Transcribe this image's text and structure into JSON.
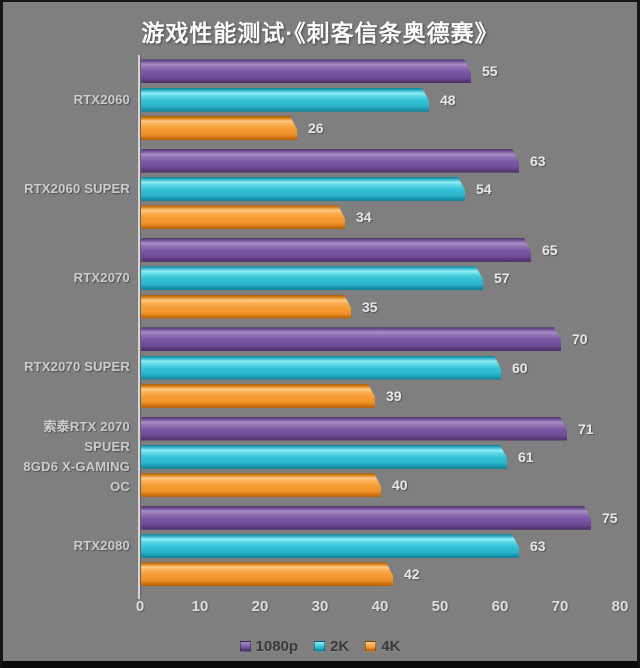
{
  "title": "游戏性能测试·《刺客信条奥德赛》",
  "chart_data": {
    "type": "bar",
    "orientation": "horizontal",
    "title": "游戏性能测试·《刺客信条奥德赛》",
    "categories": [
      "RTX2060",
      "RTX2060 SUPER",
      "RTX2070",
      "RTX2070 SUPER",
      "索泰RTX 2070 SPUER\n8GD6 X-GAMING OC",
      "RTX2080"
    ],
    "series": [
      {
        "name": "1080p",
        "color": "#7c58a4",
        "values": [
          55,
          63,
          65,
          70,
          71,
          75
        ]
      },
      {
        "name": "2K",
        "color": "#35c2d6",
        "values": [
          48,
          54,
          57,
          60,
          61,
          63
        ]
      },
      {
        "name": "4K",
        "color": "#f69d35",
        "values": [
          26,
          34,
          35,
          39,
          40,
          42
        ]
      }
    ],
    "x_ticks": [
      0,
      10,
      20,
      30,
      40,
      50,
      60,
      70,
      80
    ],
    "xlim": [
      0,
      80
    ],
    "data_labels": true,
    "legend_position": "bottom",
    "grid": false,
    "background_color": "#7f7f7f",
    "title_color": "#fbfbfb"
  }
}
